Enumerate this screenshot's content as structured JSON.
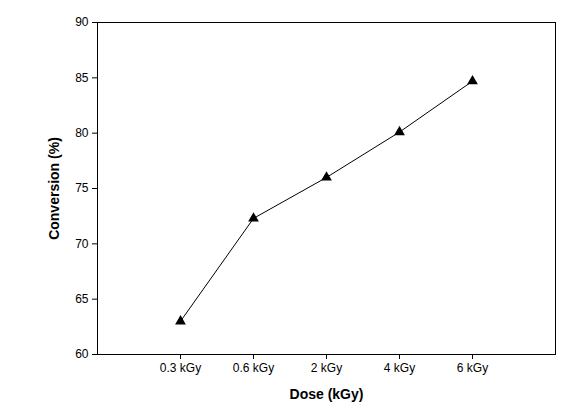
{
  "chart_data": {
    "type": "line",
    "categories": [
      "0.3 kGy",
      "0.6 kGy",
      "2 kGy",
      "4 kGy",
      "6 kGy"
    ],
    "values": [
      63.0,
      72.3,
      76.0,
      80.1,
      84.7
    ],
    "x_label": "Dose (kGy)",
    "y_label": "Conversion (%)",
    "color": "#000000",
    "marker": "triangle",
    "line_style": "solid",
    "ylim": [
      60,
      90
    ],
    "yticks": [
      60,
      65,
      70,
      75,
      80,
      85,
      90
    ],
    "grid": false
  }
}
